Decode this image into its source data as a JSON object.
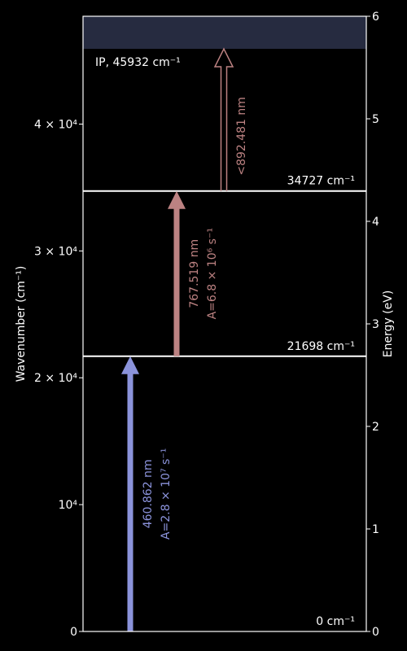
{
  "chart_data": {
    "type": "energy-level-diagram",
    "left_axis": {
      "label": "Wavenumber (cm⁻¹)",
      "range": [
        0,
        48500
      ],
      "ticks": [
        {
          "value": 0,
          "label": "0"
        },
        {
          "value": 10000,
          "label": "10⁴"
        },
        {
          "value": 20000,
          "label": "2 × 10⁴"
        },
        {
          "value": 30000,
          "label": "3 × 10⁴"
        },
        {
          "value": 40000,
          "label": "4 × 10⁴"
        }
      ]
    },
    "right_axis": {
      "label": "Energy (eV)",
      "range": [
        0,
        6
      ],
      "ticks": [
        {
          "value": 0,
          "label": "0"
        },
        {
          "value": 1,
          "label": "1"
        },
        {
          "value": 2,
          "label": "2"
        },
        {
          "value": 3,
          "label": "3"
        },
        {
          "value": 4,
          "label": "4"
        },
        {
          "value": 5,
          "label": "5"
        },
        {
          "value": 6,
          "label": "6"
        }
      ]
    },
    "levels": [
      {
        "wavenumber": 0,
        "label": "0 cm⁻¹"
      },
      {
        "wavenumber": 21698,
        "label": "21698 cm⁻¹"
      },
      {
        "wavenumber": 34727,
        "label": "34727 cm⁻¹"
      }
    ],
    "ionization": {
      "wavenumber": 45932,
      "label": "IP, 45932 cm⁻¹",
      "color": "#262b40"
    },
    "transitions": [
      {
        "from": 0,
        "to": 21698,
        "wavelength": "460.862 nm",
        "rate": "A=2.8 × 10⁷ s⁻¹",
        "color": "#8b93db",
        "style": "filled"
      },
      {
        "from": 21698,
        "to": 34727,
        "wavelength": "767.519 nm",
        "rate": "A=6.8 × 10⁶ s⁻¹",
        "color": "#bc8282",
        "style": "filled"
      },
      {
        "from": 34727,
        "to": 45932,
        "wavelength": "<892.481 nm",
        "rate": "",
        "color": "#bc8282",
        "style": "outline"
      }
    ]
  }
}
